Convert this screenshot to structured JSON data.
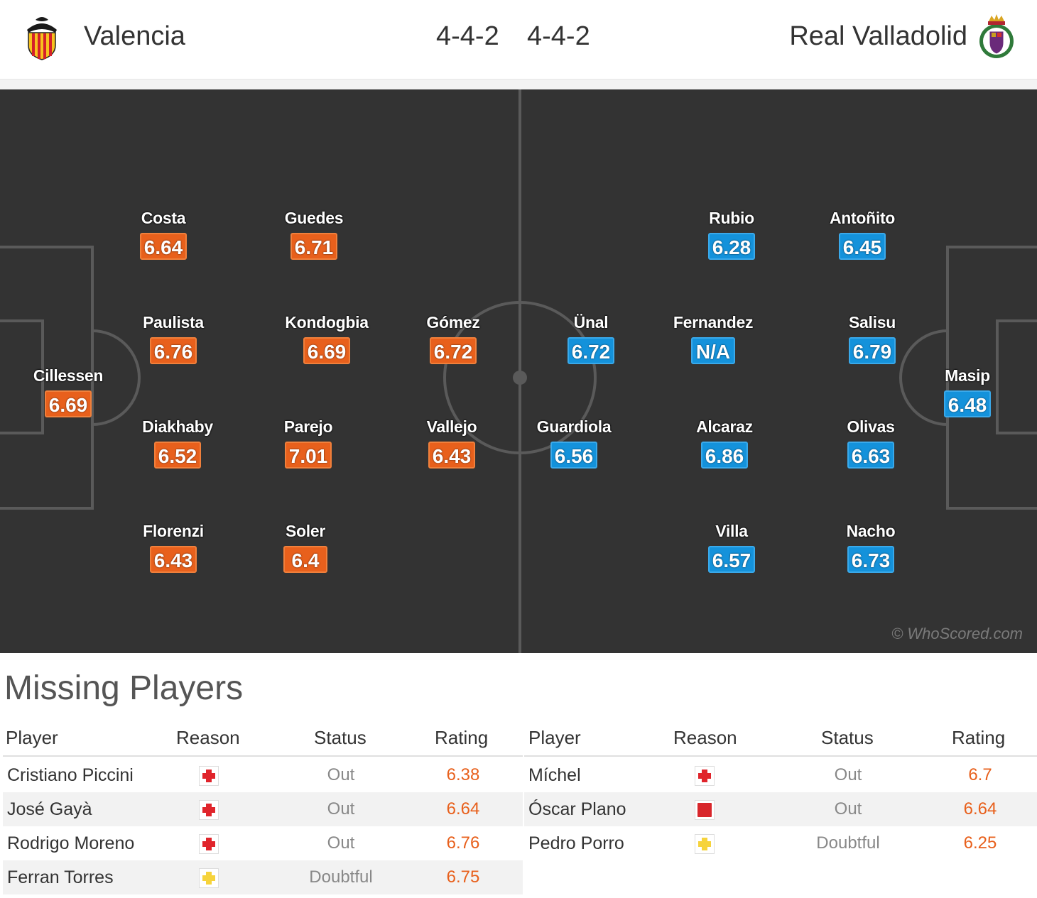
{
  "header": {
    "home_team": "Valencia",
    "away_team": "Real Valladolid",
    "home_formation": "4-4-2",
    "away_formation": "4-4-2",
    "home_crest_icon": "valencia-bat-crest-icon",
    "away_crest_icon": "valladolid-crown-crest-icon"
  },
  "pitch": {
    "watermark": "© WhoScored.com",
    "home_players": [
      {
        "name": "Cillessen",
        "rating": "6.69"
      },
      {
        "name": "Costa",
        "rating": "6.64"
      },
      {
        "name": "Paulista",
        "rating": "6.76"
      },
      {
        "name": "Diakhaby",
        "rating": "6.52"
      },
      {
        "name": "Florenzi",
        "rating": "6.43"
      },
      {
        "name": "Guedes",
        "rating": "6.71"
      },
      {
        "name": "Kondogbia",
        "rating": "6.69"
      },
      {
        "name": "Parejo",
        "rating": "7.01"
      },
      {
        "name": "Soler",
        "rating": "6.4"
      },
      {
        "name": "Gómez",
        "rating": "6.72"
      },
      {
        "name": "Vallejo",
        "rating": "6.43"
      }
    ],
    "away_players": [
      {
        "name": "Ünal",
        "rating": "6.72"
      },
      {
        "name": "Guardiola",
        "rating": "6.56"
      },
      {
        "name": "Rubio",
        "rating": "6.28"
      },
      {
        "name": "Fernandez",
        "rating": "N/A"
      },
      {
        "name": "Alcaraz",
        "rating": "6.86"
      },
      {
        "name": "Villa",
        "rating": "6.57"
      },
      {
        "name": "Antoñito",
        "rating": "6.45"
      },
      {
        "name": "Salisu",
        "rating": "6.79"
      },
      {
        "name": "Olivas",
        "rating": "6.63"
      },
      {
        "name": "Nacho",
        "rating": "6.73"
      },
      {
        "name": "Masip",
        "rating": "6.48"
      }
    ]
  },
  "missing": {
    "title": "Missing Players",
    "columns": [
      "Player",
      "Reason",
      "Status",
      "Rating"
    ],
    "home": [
      {
        "player": "Cristiano Piccini",
        "reason": "injury-icon",
        "status": "Out",
        "rating": "6.38"
      },
      {
        "player": "José Gayà",
        "reason": "injury-icon",
        "status": "Out",
        "rating": "6.64"
      },
      {
        "player": "Rodrigo Moreno",
        "reason": "injury-icon",
        "status": "Out",
        "rating": "6.76"
      },
      {
        "player": "Ferran Torres",
        "reason": "doubtful-icon",
        "status": "Doubtful",
        "rating": "6.75"
      }
    ],
    "away": [
      {
        "player": "Míchel",
        "reason": "injury-icon",
        "status": "Out",
        "rating": "6.7"
      },
      {
        "player": "Óscar Plano",
        "reason": "red-card-icon",
        "status": "Out",
        "rating": "6.64"
      },
      {
        "player": "Pedro Porro",
        "reason": "doubtful-icon",
        "status": "Doubtful",
        "rating": "6.25"
      }
    ]
  },
  "colors": {
    "home_rating": "#e8601c",
    "away_rating": "#1492db",
    "pitch": "#333333",
    "injury": "#e0242b",
    "doubtful": "#f6d33c",
    "red_card": "#d8262b"
  }
}
